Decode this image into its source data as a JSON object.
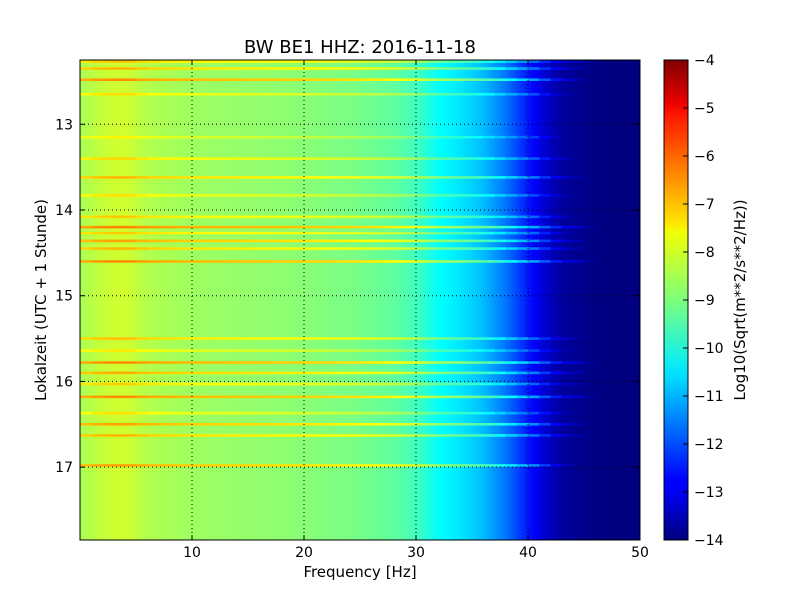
{
  "chart_data": {
    "type": "heatmap",
    "title": "BW BE1 HHZ: 2016-11-18",
    "xlabel": "Frequency [Hz]",
    "ylabel": "Lokalzeit (UTC + 1 Stunde)",
    "xlim": [
      0,
      50
    ],
    "ylim": [
      12.25,
      17.85
    ],
    "y_inverted": true,
    "x_ticks": [
      10,
      20,
      30,
      40,
      50
    ],
    "y_ticks": [
      13,
      14,
      15,
      16,
      17
    ],
    "grid": true,
    "colormap": "jet",
    "colorbar": {
      "label": "Log10(Sqrt(m**2/s**2/Hz))",
      "range": [
        -14,
        -4
      ],
      "ticks": [
        -4,
        -5,
        -6,
        -7,
        -8,
        -9,
        -10,
        -11,
        -12,
        -13,
        -14
      ]
    },
    "spectrum_profile": {
      "frequency_hz": [
        0,
        2,
        4,
        6,
        10,
        15,
        20,
        25,
        28,
        30,
        32,
        34,
        36,
        38,
        40,
        41,
        42,
        43,
        45,
        47,
        50
      ],
      "level": [
        -8.6,
        -8.3,
        -8.2,
        -8.5,
        -8.7,
        -8.8,
        -8.9,
        -9.1,
        -9.3,
        -9.6,
        -10.2,
        -10.5,
        -10.9,
        -11.6,
        -12.5,
        -13.0,
        -13.4,
        -13.7,
        -13.9,
        -14.0,
        -14.0
      ]
    },
    "bright_bands": [
      {
        "time": 12.27,
        "level_offset": 1.0,
        "max_hz": 46
      },
      {
        "time": 12.35,
        "level_offset": 1.2,
        "max_hz": 45
      },
      {
        "time": 12.48,
        "level_offset": 1.6,
        "max_hz": 45
      },
      {
        "time": 12.65,
        "level_offset": 0.8,
        "max_hz": 44
      },
      {
        "time": 13.15,
        "level_offset": 0.6,
        "max_hz": 43
      },
      {
        "time": 13.4,
        "level_offset": 0.9,
        "max_hz": 44
      },
      {
        "time": 13.62,
        "level_offset": 1.2,
        "max_hz": 45
      },
      {
        "time": 13.83,
        "level_offset": 0.8,
        "max_hz": 44
      },
      {
        "time": 14.08,
        "level_offset": 1.0,
        "max_hz": 44
      },
      {
        "time": 14.2,
        "level_offset": 1.7,
        "max_hz": 46
      },
      {
        "time": 14.27,
        "level_offset": 1.0,
        "max_hz": 44
      },
      {
        "time": 14.36,
        "level_offset": 1.4,
        "max_hz": 45
      },
      {
        "time": 14.45,
        "level_offset": 1.2,
        "max_hz": 45
      },
      {
        "time": 14.6,
        "level_offset": 1.6,
        "max_hz": 46
      },
      {
        "time": 15.5,
        "level_offset": 1.1,
        "max_hz": 45
      },
      {
        "time": 15.64,
        "level_offset": 0.7,
        "max_hz": 44
      },
      {
        "time": 15.78,
        "level_offset": 1.6,
        "max_hz": 46
      },
      {
        "time": 15.9,
        "level_offset": 1.3,
        "max_hz": 45
      },
      {
        "time": 16.03,
        "level_offset": 1.0,
        "max_hz": 45
      },
      {
        "time": 16.18,
        "level_offset": 1.6,
        "max_hz": 46
      },
      {
        "time": 16.37,
        "level_offset": 0.8,
        "max_hz": 44
      },
      {
        "time": 16.5,
        "level_offset": 1.4,
        "max_hz": 45
      },
      {
        "time": 16.63,
        "level_offset": 1.2,
        "max_hz": 45
      },
      {
        "time": 16.98,
        "level_offset": 1.4,
        "max_hz": 44
      }
    ]
  }
}
